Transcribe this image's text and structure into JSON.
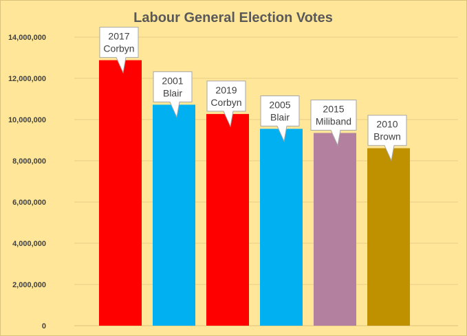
{
  "chart_data": {
    "type": "bar",
    "title": "Labour General Election Votes",
    "xlabel": "",
    "ylabel": "",
    "ylim": [
      0,
      14000000
    ],
    "yticks": [
      0,
      2000000,
      4000000,
      6000000,
      8000000,
      10000000,
      12000000,
      14000000
    ],
    "ytick_labels": [
      "0",
      "2,000,000",
      "4,000,000",
      "6,000,000",
      "8,000,000",
      "10,000,000",
      "12,000,000",
      "14,000,000"
    ],
    "grid": true,
    "bars": [
      {
        "year": "2017",
        "leader": "Corbyn",
        "value": 12880000,
        "color": "#ff0000"
      },
      {
        "year": "2001",
        "leader": "Blair",
        "value": 10720000,
        "color": "#00b0f0"
      },
      {
        "year": "2019",
        "leader": "Corbyn",
        "value": 10270000,
        "color": "#ff0000"
      },
      {
        "year": "2005",
        "leader": "Blair",
        "value": 9550000,
        "color": "#00b0f0"
      },
      {
        "year": "2015",
        "leader": "Miliband",
        "value": 9350000,
        "color": "#b4809f"
      },
      {
        "year": "2010",
        "leader": "Brown",
        "value": 8610000,
        "color": "#bf9000"
      }
    ]
  }
}
